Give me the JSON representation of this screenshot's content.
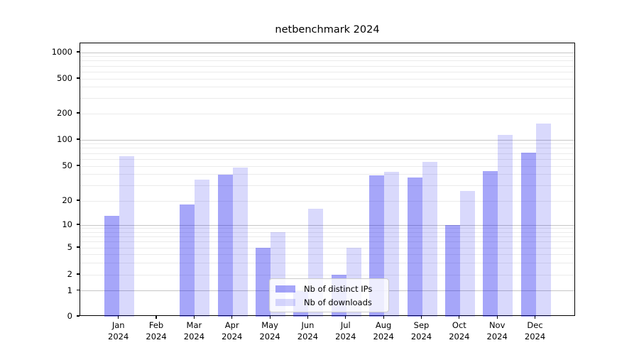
{
  "chart_data": {
    "type": "bar",
    "title": "netbenchmark 2024",
    "categories": [
      "Jan",
      "Feb",
      "Mar",
      "Apr",
      "May",
      "Jun",
      "Jul",
      "Aug",
      "Sep",
      "Oct",
      "Nov",
      "Dec"
    ],
    "year_label": "2024",
    "series": [
      {
        "name": "Nb of distinct IPs",
        "color": "rgba(0,0,238,0.35)",
        "values": [
          13,
          0,
          18,
          40,
          5,
          1,
          2,
          39,
          37,
          10,
          44,
          72
        ]
      },
      {
        "name": "Nb of downloads",
        "color": "rgba(0,0,238,0.15)",
        "values": [
          65,
          0,
          35,
          48,
          8,
          16,
          5,
          43,
          56,
          26,
          115,
          155
        ]
      }
    ],
    "yticks": [
      0,
      1,
      2,
      5,
      10,
      20,
      50,
      100,
      200,
      500,
      1000
    ],
    "ylim": [
      0,
      1276
    ],
    "scale": "symlog",
    "grid": true,
    "legend_position": "lower-center"
  },
  "colors": {
    "major_grid": "#c6c6c6",
    "minor_grid": "#ebebeb",
    "spine": "#000000",
    "legend_border": "#cccccc",
    "background": "#ffffff"
  }
}
